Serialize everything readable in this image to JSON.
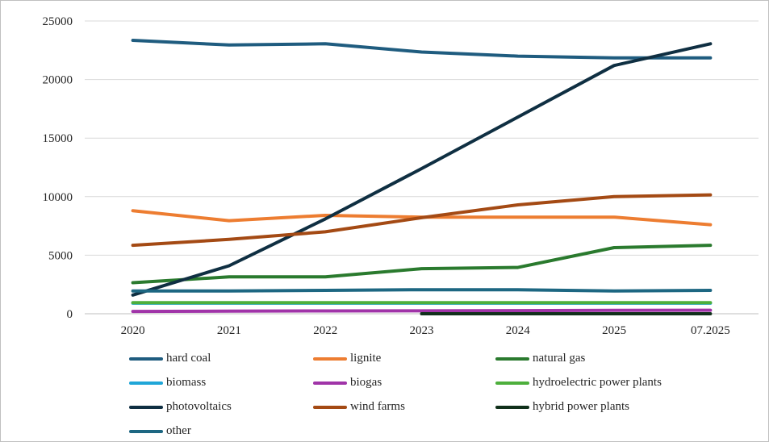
{
  "chart_data": {
    "type": "line",
    "title": "",
    "xlabel": "",
    "ylabel": "",
    "categories": [
      "2020",
      "2021",
      "2022",
      "2023",
      "2024",
      "2025",
      "07.2025"
    ],
    "ylim": [
      0,
      25000
    ],
    "yticks": [
      0,
      5000,
      10000,
      15000,
      20000,
      25000
    ],
    "yticklabels": [
      "0",
      "5000",
      "10000",
      "15000",
      "20000",
      "25000"
    ],
    "grid": "horizontal",
    "legend_position": "bottom",
    "series": [
      {
        "name": "hard coal",
        "color": "#1f5c7f",
        "values": [
          23350,
          22950,
          23050,
          22350,
          22000,
          21850,
          21850
        ]
      },
      {
        "name": "lignite",
        "color": "#ed7d31",
        "values": [
          8800,
          7950,
          8400,
          8250,
          8250,
          8250,
          7600
        ]
      },
      {
        "name": "natural gas",
        "color": "#2a7a2e",
        "values": [
          2650,
          3150,
          3150,
          3850,
          3950,
          5650,
          5850
        ]
      },
      {
        "name": "biomass",
        "color": "#1fa6d8",
        "values": [
          900,
          900,
          900,
          900,
          900,
          900,
          900
        ]
      },
      {
        "name": "biogas",
        "color": "#a034a8",
        "values": [
          200,
          220,
          240,
          250,
          270,
          290,
          300
        ]
      },
      {
        "name": "hydroelectric power plants",
        "color": "#4daf3c",
        "values": [
          950,
          950,
          950,
          950,
          950,
          950,
          950
        ]
      },
      {
        "name": "photovoltaics",
        "color": "#0f2f42",
        "values": [
          1600,
          4100,
          8100,
          12400,
          16800,
          21200,
          23050
        ]
      },
      {
        "name": "wind farms",
        "color": "#a44a14",
        "values": [
          5850,
          6350,
          7000,
          8200,
          9300,
          10000,
          10150
        ]
      },
      {
        "name": "hybrid power plants",
        "color": "#10301a",
        "values": [
          null,
          null,
          null,
          0,
          0,
          0,
          0
        ]
      },
      {
        "name": "other",
        "color": "#1d6782",
        "values": [
          1950,
          1950,
          2000,
          2050,
          2050,
          1950,
          2000
        ]
      }
    ]
  }
}
